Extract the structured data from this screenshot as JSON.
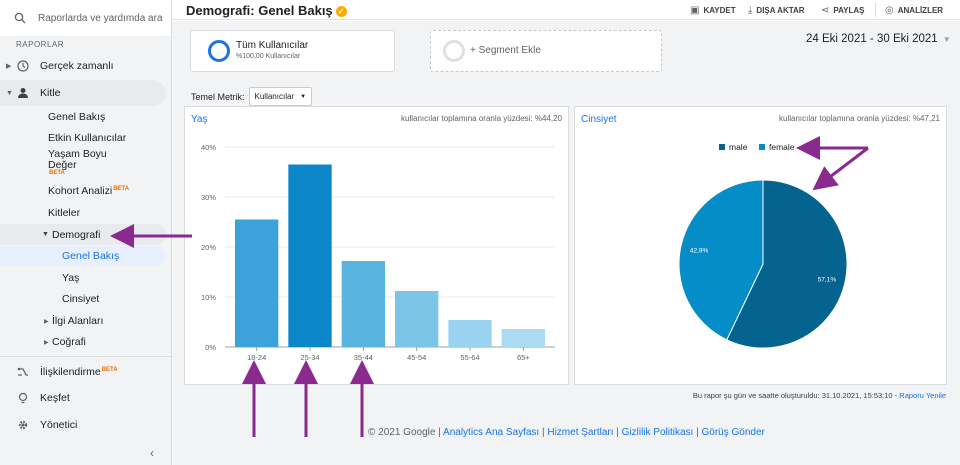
{
  "sidebar": {
    "search_placeholder": "Raporlarda ve yardımda ara",
    "section_label": "RAPORLAR",
    "items": [
      {
        "label": "Gerçek zamanlı"
      },
      {
        "label": "Kitle"
      },
      {
        "label": "Genel Bakış"
      },
      {
        "label": "Etkin Kullanıcılar"
      },
      {
        "label": "Yaşam Boyu",
        "label2": "Değer",
        "badge": "BETA"
      },
      {
        "label": "Kohort Analizi",
        "badge": "BETA"
      },
      {
        "label": "Kitleler"
      },
      {
        "label": "Demografi"
      },
      {
        "label": "Genel Bakış"
      },
      {
        "label": "Yaş"
      },
      {
        "label": "Cinsiyet"
      },
      {
        "label": "İlgi Alanları"
      },
      {
        "label": "Coğrafi"
      },
      {
        "label": "İlişkilendirme",
        "badge": "BETA"
      },
      {
        "label": "Keşfet"
      },
      {
        "label": "Yönetici"
      }
    ]
  },
  "header": {
    "title": "Demografi: Genel Bakış",
    "save": "KAYDET",
    "export": "DIŞA AKTAR",
    "share": "PAYLAŞ",
    "insights": "ANALİZLER"
  },
  "segments": {
    "all_users": "Tüm Kullanıcılar",
    "all_users_sub": "%100,00 Kullanıcılar",
    "add": "+ Segment Ekle"
  },
  "date_range": "24 Eki 2021 - 30 Eki 2021",
  "metric": {
    "label": "Temel Metrik:",
    "value": "Kullanıcılar"
  },
  "age_card": {
    "title": "Yaş",
    "note": "kullanıcılar toplamına oranla yüzdesi: %44,20"
  },
  "gender_card": {
    "title": "Cinsiyet",
    "note": "kullanıcılar toplamına oranla yüzdesi: %47,21"
  },
  "colors": {
    "accent": "#1a73e8",
    "annotation": "#8b2a8e"
  },
  "chart_data": [
    {
      "type": "bar",
      "categories": [
        "18-24",
        "25-34",
        "35-44",
        "45-54",
        "55-64",
        "65+"
      ],
      "values": [
        25.5,
        36.5,
        17.2,
        11.2,
        5.4,
        3.6
      ],
      "colors": [
        "#3ba3d9",
        "#0b87c9",
        "#5ab4e0",
        "#7cc4e8",
        "#99d3f0",
        "#aadbf2"
      ],
      "ylim": [
        0,
        40
      ],
      "yticks": [
        "0%",
        "10%",
        "20%",
        "30%",
        "40%"
      ],
      "grid": true
    },
    {
      "type": "pie",
      "labels": [
        "male",
        "female"
      ],
      "values": [
        57.1,
        42.9
      ],
      "value_labels": [
        "57,1%",
        "42,9%"
      ],
      "colors": [
        "#05638f",
        "#058dc7"
      ],
      "legend": "top"
    }
  ],
  "footer_note": "Bu rapor şu gün ve saatte oluşturuldu: 31.10.2021, 15:53:10 -",
  "footer_refresh": "Raporu Yenile",
  "footer": {
    "copyright": "© 2021 Google",
    "links": [
      "Analytics Ana Sayfası",
      "Hizmet Şartları",
      "Gizlilik Politikası",
      "Görüş Gönder"
    ]
  }
}
